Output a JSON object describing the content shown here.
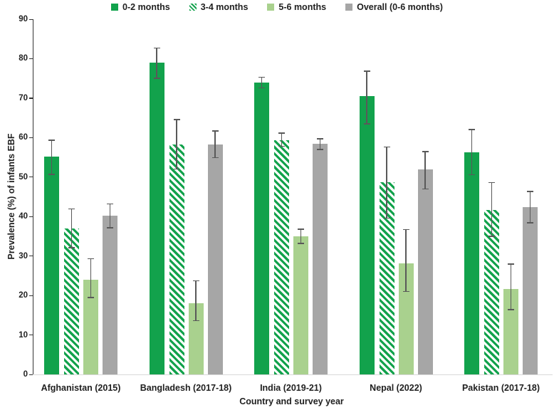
{
  "chart_data": {
    "type": "bar",
    "title": "",
    "xlabel": "Country and survey year",
    "ylabel": "Prevalence (%) of infants EBF",
    "ylim": [
      0,
      90
    ],
    "yticks": [
      0,
      10,
      20,
      30,
      40,
      50,
      60,
      70,
      80,
      90
    ],
    "grid": false,
    "legend_position": "top-center",
    "error_bars": true,
    "categories": [
      "Afghanistan (2015)",
      "Bangladesh (2017-18)",
      "India (2019-21)",
      "Nepal (2022)",
      "Pakistan (2017-18)"
    ],
    "series": [
      {
        "name": "0-2 months",
        "color": "#12a24c",
        "pattern": "solid",
        "values": [
          55.2,
          79.0,
          74.0,
          70.6,
          56.3
        ],
        "error_low": [
          50.7,
          75.0,
          72.6,
          63.5,
          50.6
        ],
        "error_high": [
          59.3,
          82.7,
          75.3,
          76.8,
          62.0
        ]
      },
      {
        "name": "3-4 months",
        "color": "#12a24c",
        "pattern": "diagonal-hatch",
        "values": [
          36.9,
          58.3,
          59.4,
          48.7,
          41.7
        ],
        "error_low": [
          32.1,
          52.0,
          57.8,
          39.6,
          35.0
        ],
        "error_high": [
          41.9,
          64.6,
          61.1,
          57.6,
          48.6
        ]
      },
      {
        "name": "5-6 months",
        "color": "#a9d18e",
        "pattern": "solid",
        "values": [
          24.0,
          18.0,
          35.0,
          28.2,
          21.7
        ],
        "error_low": [
          19.5,
          13.6,
          33.2,
          21.0,
          16.4
        ],
        "error_high": [
          29.3,
          23.7,
          36.8,
          36.7,
          28.0
        ]
      },
      {
        "name": "Overall (0-6 months)",
        "color": "#a6a6a6",
        "pattern": "solid",
        "values": [
          40.2,
          58.2,
          58.5,
          51.9,
          42.3
        ],
        "error_low": [
          37.2,
          54.9,
          57.0,
          47.0,
          38.4
        ],
        "error_high": [
          43.2,
          61.7,
          59.7,
          56.5,
          46.4
        ]
      }
    ],
    "colors": {
      "solid_green": "#12a24c",
      "light_green": "#a9d18e",
      "overall_gray": "#a6a6a6",
      "error_bar": "#595959",
      "y_axis": "#333333",
      "x_baseline": "#d9d9d9",
      "text": "#1f1f1f",
      "background": "#ffffff"
    }
  }
}
